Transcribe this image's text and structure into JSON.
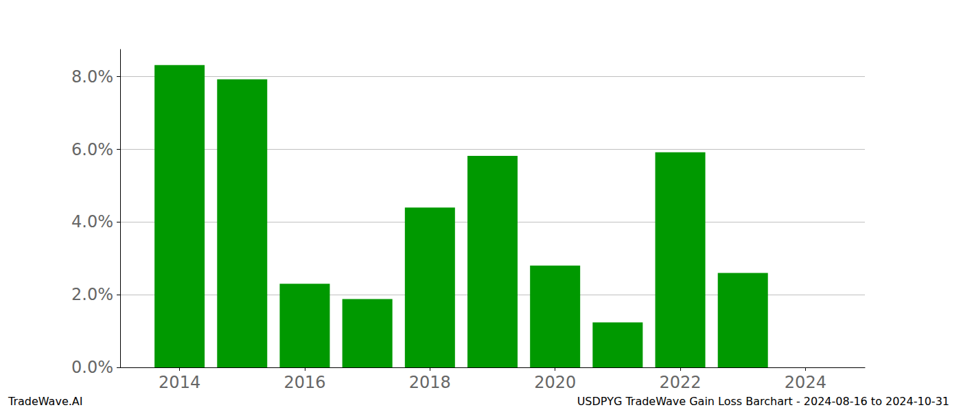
{
  "chart_data": {
    "type": "bar",
    "title": "USDPYG TradeWave Gain Loss Barchart - 2024-08-16 to 2024-10-31",
    "annotations": [
      "TradeWave.AI"
    ],
    "x": [
      2014,
      2015,
      2016,
      2017,
      2018,
      2019,
      2020,
      2021,
      2022,
      2023
    ],
    "values": [
      8.32,
      7.93,
      2.3,
      1.88,
      4.4,
      5.82,
      2.8,
      1.24,
      5.92,
      2.6
    ],
    "color": "#009900",
    "xlim": [
      2013.05,
      2024.95
    ],
    "xticks": [
      2014,
      2016,
      2018,
      2020,
      2022,
      2024
    ],
    "ylim": [
      0,
      8.75
    ],
    "yticks": [
      {
        "value": 0,
        "label": "0.0%"
      },
      {
        "value": 2,
        "label": "2.0%"
      },
      {
        "value": 4,
        "label": "4.0%"
      },
      {
        "value": 6,
        "label": "6.0%"
      },
      {
        "value": 8,
        "label": "8.0%"
      }
    ],
    "grid": true
  }
}
